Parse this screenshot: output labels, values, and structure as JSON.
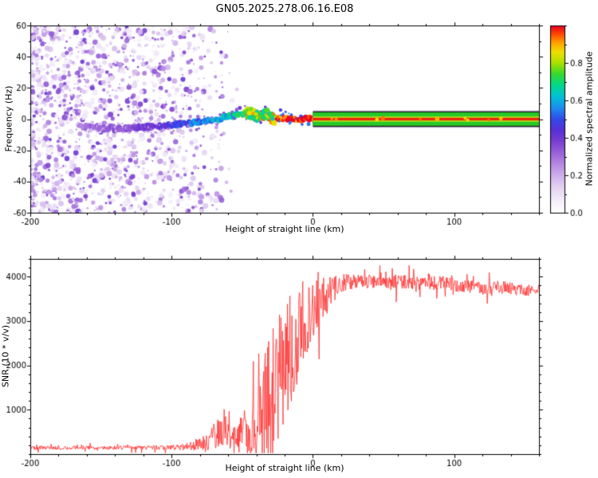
{
  "title": "GN05.2025.278.06.16.E08",
  "background": "#ffffff",
  "frame_color": "#000000",
  "chart_data": [
    {
      "type": "heatmap",
      "description": "Spectrogram: purple noise field for heights below about -90 km, a signal trace rising from about -5 Hz to 0 Hz between -160 and -20 km that brightens from purple/blue to cyan, green then red, and a flat multicolor carrier band centered at 0 Hz for heights above 0 km",
      "xlabel": "Height of straight line (km)",
      "ylabel": "Frequency (Hz)",
      "xlim": [
        -200,
        160
      ],
      "ylim": [
        -60,
        60
      ],
      "x_ticks": [
        -200,
        -100,
        0,
        100
      ],
      "x_minor_step": 20,
      "y_ticks": [
        -60,
        -40,
        -20,
        0,
        20,
        40,
        60
      ],
      "y_minor_step": 10,
      "colorbar": {
        "label": "Normalized spectral amplitude",
        "ticks": [
          0.0,
          0.2,
          0.4,
          0.6,
          0.8
        ],
        "minor_step": 0.1,
        "range": [
          0,
          1
        ]
      },
      "colormap_stops": [
        [
          0.0,
          "#ffffff"
        ],
        [
          0.06,
          "#f6f0fb"
        ],
        [
          0.14,
          "#e2d2f2"
        ],
        [
          0.22,
          "#c7a3e8"
        ],
        [
          0.3,
          "#a470dc"
        ],
        [
          0.38,
          "#7b3fd0"
        ],
        [
          0.44,
          "#5a2fd8"
        ],
        [
          0.5,
          "#3448e8"
        ],
        [
          0.56,
          "#1e8af0"
        ],
        [
          0.62,
          "#00c0d8"
        ],
        [
          0.68,
          "#00d890"
        ],
        [
          0.74,
          "#30d830"
        ],
        [
          0.8,
          "#a8e000"
        ],
        [
          0.86,
          "#f0e000"
        ],
        [
          0.91,
          "#ffa000"
        ],
        [
          0.96,
          "#ff4000"
        ],
        [
          1.0,
          "#e80028"
        ]
      ],
      "noise_field": {
        "x_range": [
          -200,
          -52
        ],
        "f_range": [
          -60,
          60
        ],
        "count": 1700,
        "amp_range": [
          0.06,
          0.42
        ],
        "fade_start": -92
      },
      "signal_trace": {
        "points": [
          [
            -166,
            -5.0,
            0.28
          ],
          [
            -150,
            -5.5,
            0.32
          ],
          [
            -135,
            -6.0,
            0.34
          ],
          [
            -120,
            -5.0,
            0.38
          ],
          [
            -110,
            -4.5,
            0.42
          ],
          [
            -100,
            -4.0,
            0.46
          ],
          [
            -90,
            -3.0,
            0.5
          ],
          [
            -80,
            -2.0,
            0.55
          ],
          [
            -70,
            -0.5,
            0.58
          ],
          [
            -60,
            1.5,
            0.62
          ],
          [
            -52,
            3.0,
            0.68
          ],
          [
            -46,
            4.5,
            0.72
          ],
          [
            -42,
            3.0,
            0.76
          ],
          [
            -38,
            1.0,
            0.8
          ],
          [
            -34,
            3.5,
            0.85
          ],
          [
            -30,
            1.0,
            0.9
          ],
          [
            -26,
            0.0,
            0.95
          ],
          [
            -20,
            0.5,
            1.0
          ],
          [
            -10,
            0.0,
            1.0
          ],
          [
            0,
            0.0,
            1.0
          ],
          [
            4,
            0.0,
            1.0
          ]
        ]
      },
      "flat_band": {
        "x_range": [
          0,
          160
        ],
        "center_hz": 0,
        "layers": [
          {
            "half_hz": 5.8,
            "color": "#e8dcf6"
          },
          {
            "half_hz": 5.0,
            "color": "#141414"
          },
          {
            "half_hz": 4.3,
            "color": "#28c828"
          },
          {
            "half_hz": 1.7,
            "color": "#b4e014"
          },
          {
            "half_hz": 0.85,
            "color": "#ee2012"
          }
        ]
      }
    },
    {
      "type": "line",
      "description": "SNR vs straight-line height: flat noisy baseline near 140 below -90 km, bursty rise with large spikes between -70 and 0 km (peaks near 4400 around -30 km), then noisy plateau near 3700-3950 above +20 km",
      "xlabel": "Height of straight line (km)",
      "ylabel": "SNR (10 * v/v)",
      "xlim": [
        -200,
        160
      ],
      "ylim": [
        0,
        4400
      ],
      "x_ticks": [
        -200,
        -100,
        0,
        100
      ],
      "x_minor_step": 20,
      "y_ticks": [
        1000,
        2000,
        3000,
        4000
      ],
      "y_minor_step": 200,
      "color": "#ff2a2a",
      "series": [
        {
          "name": "SNR",
          "x": [
            -200,
            -120,
            -95,
            -85,
            -75,
            -68,
            -62,
            -57,
            -52,
            -48,
            -44,
            -40,
            -36,
            -32,
            -29,
            -26,
            -23,
            -20,
            -17,
            -14,
            -11,
            -8,
            -5,
            -2,
            2,
            6,
            10,
            15,
            20,
            30,
            45,
            60,
            75,
            90,
            105,
            120,
            135,
            150,
            160
          ],
          "mean": [
            140,
            145,
            155,
            190,
            280,
            450,
            600,
            450,
            420,
            600,
            500,
            600,
            700,
            900,
            1400,
            1800,
            2000,
            2200,
            2400,
            2200,
            2600,
            2800,
            3000,
            3100,
            3300,
            3500,
            3600,
            3750,
            3850,
            3900,
            3880,
            3900,
            3850,
            3870,
            3800,
            3720,
            3760,
            3680,
            3720
          ],
          "noise": [
            45,
            45,
            60,
            110,
            200,
            350,
            450,
            350,
            400,
            420,
            550,
            800,
            1300,
            1700,
            1800,
            1700,
            1600,
            1500,
            1400,
            1200,
            1000,
            900,
            800,
            700,
            600,
            500,
            400,
            300,
            220,
            160,
            150,
            160,
            150,
            150,
            160,
            150,
            140,
            130,
            130
          ]
        }
      ]
    }
  ]
}
